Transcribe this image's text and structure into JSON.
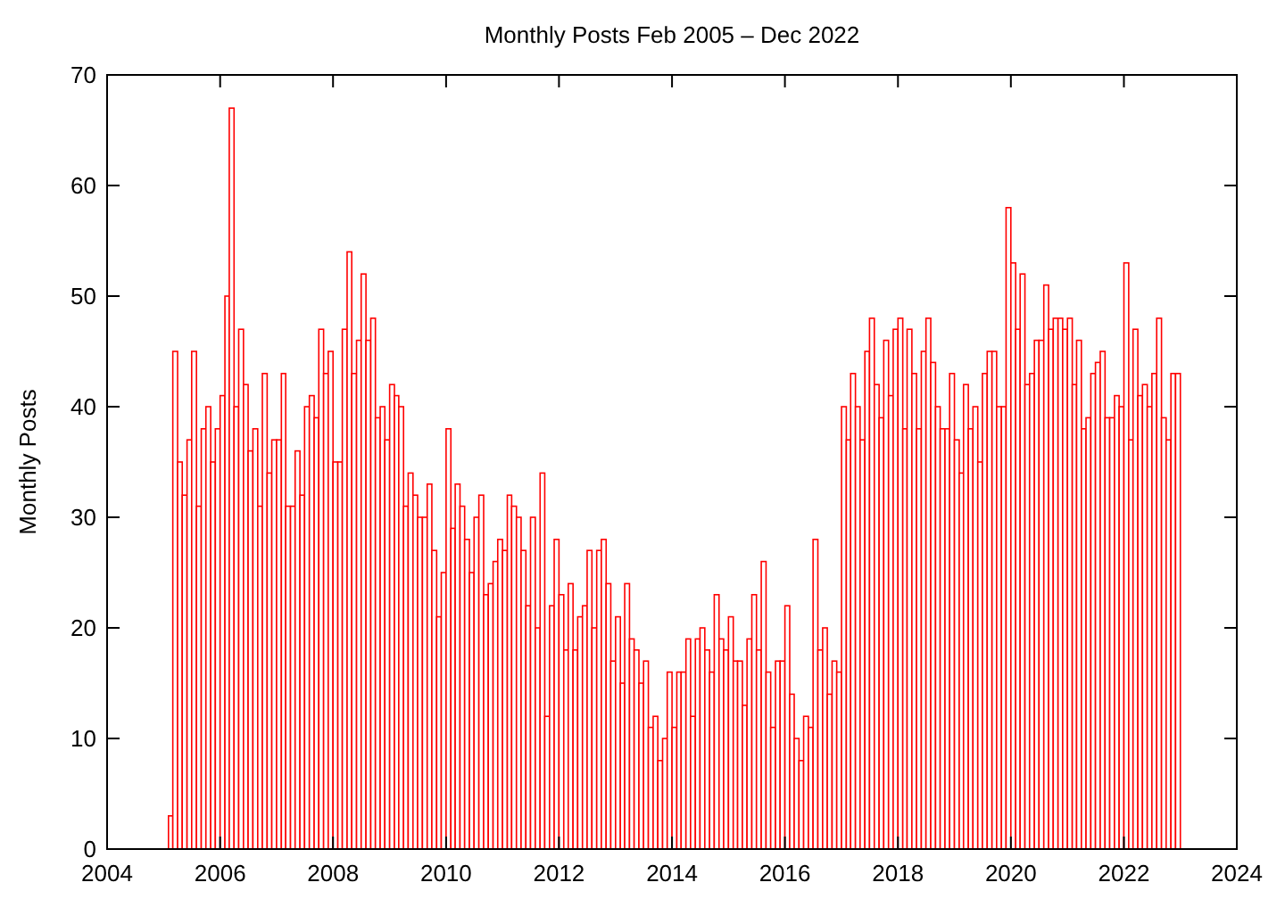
{
  "chart_data": {
    "type": "bar",
    "title": "Monthly Posts Feb 2005 – Dec 2022",
    "ylabel": "Monthly Posts",
    "x": [
      "2005-02",
      "2005-03",
      "2005-04",
      "2005-05",
      "2005-06",
      "2005-07",
      "2005-08",
      "2005-09",
      "2005-10",
      "2005-11",
      "2005-12",
      "2006-01",
      "2006-02",
      "2006-03",
      "2006-04",
      "2006-05",
      "2006-06",
      "2006-07",
      "2006-08",
      "2006-09",
      "2006-10",
      "2006-11",
      "2006-12",
      "2007-01",
      "2007-02",
      "2007-03",
      "2007-04",
      "2007-05",
      "2007-06",
      "2007-07",
      "2007-08",
      "2007-09",
      "2007-10",
      "2007-11",
      "2007-12",
      "2008-01",
      "2008-02",
      "2008-03",
      "2008-04",
      "2008-05",
      "2008-06",
      "2008-07",
      "2008-08",
      "2008-09",
      "2008-10",
      "2008-11",
      "2008-12",
      "2009-01",
      "2009-02",
      "2009-03",
      "2009-04",
      "2009-05",
      "2009-06",
      "2009-07",
      "2009-08",
      "2009-09",
      "2009-10",
      "2009-11",
      "2009-12",
      "2010-01",
      "2010-02",
      "2010-03",
      "2010-04",
      "2010-05",
      "2010-06",
      "2010-07",
      "2010-08",
      "2010-09",
      "2010-10",
      "2010-11",
      "2010-12",
      "2011-01",
      "2011-02",
      "2011-03",
      "2011-04",
      "2011-05",
      "2011-06",
      "2011-07",
      "2011-08",
      "2011-09",
      "2011-10",
      "2011-11",
      "2011-12",
      "2012-01",
      "2012-02",
      "2012-03",
      "2012-04",
      "2012-05",
      "2012-06",
      "2012-07",
      "2012-08",
      "2012-09",
      "2012-10",
      "2012-11",
      "2012-12",
      "2013-01",
      "2013-02",
      "2013-03",
      "2013-04",
      "2013-05",
      "2013-06",
      "2013-07",
      "2013-08",
      "2013-09",
      "2013-10",
      "2013-11",
      "2013-12",
      "2014-01",
      "2014-02",
      "2014-03",
      "2014-04",
      "2014-05",
      "2014-06",
      "2014-07",
      "2014-08",
      "2014-09",
      "2014-10",
      "2014-11",
      "2014-12",
      "2015-01",
      "2015-02",
      "2015-03",
      "2015-04",
      "2015-05",
      "2015-06",
      "2015-07",
      "2015-08",
      "2015-09",
      "2015-10",
      "2015-11",
      "2015-12",
      "2016-01",
      "2016-02",
      "2016-03",
      "2016-04",
      "2016-05",
      "2016-06",
      "2016-07",
      "2016-08",
      "2016-09",
      "2016-10",
      "2016-11",
      "2016-12",
      "2017-01",
      "2017-02",
      "2017-03",
      "2017-04",
      "2017-05",
      "2017-06",
      "2017-07",
      "2017-08",
      "2017-09",
      "2017-10",
      "2017-11",
      "2017-12",
      "2018-01",
      "2018-02",
      "2018-03",
      "2018-04",
      "2018-05",
      "2018-06",
      "2018-07",
      "2018-08",
      "2018-09",
      "2018-10",
      "2018-11",
      "2018-12",
      "2019-01",
      "2019-02",
      "2019-03",
      "2019-04",
      "2019-05",
      "2019-06",
      "2019-07",
      "2019-08",
      "2019-09",
      "2019-10",
      "2019-11",
      "2019-12",
      "2020-01",
      "2020-02",
      "2020-03",
      "2020-04",
      "2020-05",
      "2020-06",
      "2020-07",
      "2020-08",
      "2020-09",
      "2020-10",
      "2020-11",
      "2020-12",
      "2021-01",
      "2021-02",
      "2021-03",
      "2021-04",
      "2021-05",
      "2021-06",
      "2021-07",
      "2021-08",
      "2021-09",
      "2021-10",
      "2021-11",
      "2021-12",
      "2022-01",
      "2022-02",
      "2022-03",
      "2022-04",
      "2022-05",
      "2022-06",
      "2022-07",
      "2022-08",
      "2022-09",
      "2022-10",
      "2022-11",
      "2022-12"
    ],
    "values": [
      3,
      45,
      35,
      32,
      37,
      45,
      31,
      38,
      40,
      35,
      38,
      41,
      50,
      67,
      40,
      47,
      42,
      36,
      38,
      31,
      43,
      34,
      37,
      37,
      43,
      31,
      31,
      36,
      32,
      40,
      41,
      39,
      47,
      43,
      45,
      35,
      35,
      47,
      54,
      43,
      46,
      52,
      46,
      48,
      39,
      40,
      37,
      42,
      41,
      40,
      31,
      34,
      32,
      30,
      30,
      33,
      27,
      21,
      25,
      38,
      29,
      33,
      31,
      28,
      25,
      30,
      32,
      23,
      24,
      26,
      28,
      27,
      32,
      31,
      30,
      27,
      22,
      30,
      20,
      34,
      12,
      22,
      28,
      23,
      18,
      24,
      18,
      21,
      22,
      27,
      20,
      27,
      28,
      24,
      17,
      21,
      15,
      24,
      19,
      18,
      15,
      17,
      11,
      12,
      8,
      10,
      16,
      11,
      16,
      16,
      19,
      12,
      19,
      20,
      18,
      16,
      23,
      19,
      18,
      21,
      17,
      17,
      13,
      19,
      23,
      18,
      26,
      16,
      11,
      17,
      17,
      22,
      14,
      10,
      8,
      12,
      11,
      28,
      18,
      20,
      14,
      17,
      16,
      40,
      37,
      43,
      40,
      37,
      45,
      48,
      42,
      39,
      46,
      41,
      47,
      48,
      38,
      47,
      43,
      38,
      45,
      48,
      44,
      40,
      38,
      38,
      43,
      37,
      34,
      42,
      38,
      40,
      35,
      43,
      45,
      45,
      40,
      40,
      58,
      53,
      47,
      52,
      42,
      43,
      46,
      46,
      51,
      47,
      48,
      48,
      47,
      48,
      42,
      46,
      38,
      39,
      43,
      44,
      45,
      39,
      39,
      41,
      40,
      53,
      37,
      47,
      41,
      42,
      40,
      43,
      48,
      39,
      37,
      43,
      43
    ],
    "color": "#ff0000",
    "xlim": [
      "2004",
      "2024"
    ],
    "xticks": [
      "2004",
      "2006",
      "2008",
      "2010",
      "2012",
      "2014",
      "2016",
      "2018",
      "2020",
      "2022",
      "2024"
    ],
    "ylim": [
      0,
      70
    ],
    "yticks": [
      0,
      10,
      20,
      30,
      40,
      50,
      60,
      70
    ]
  }
}
